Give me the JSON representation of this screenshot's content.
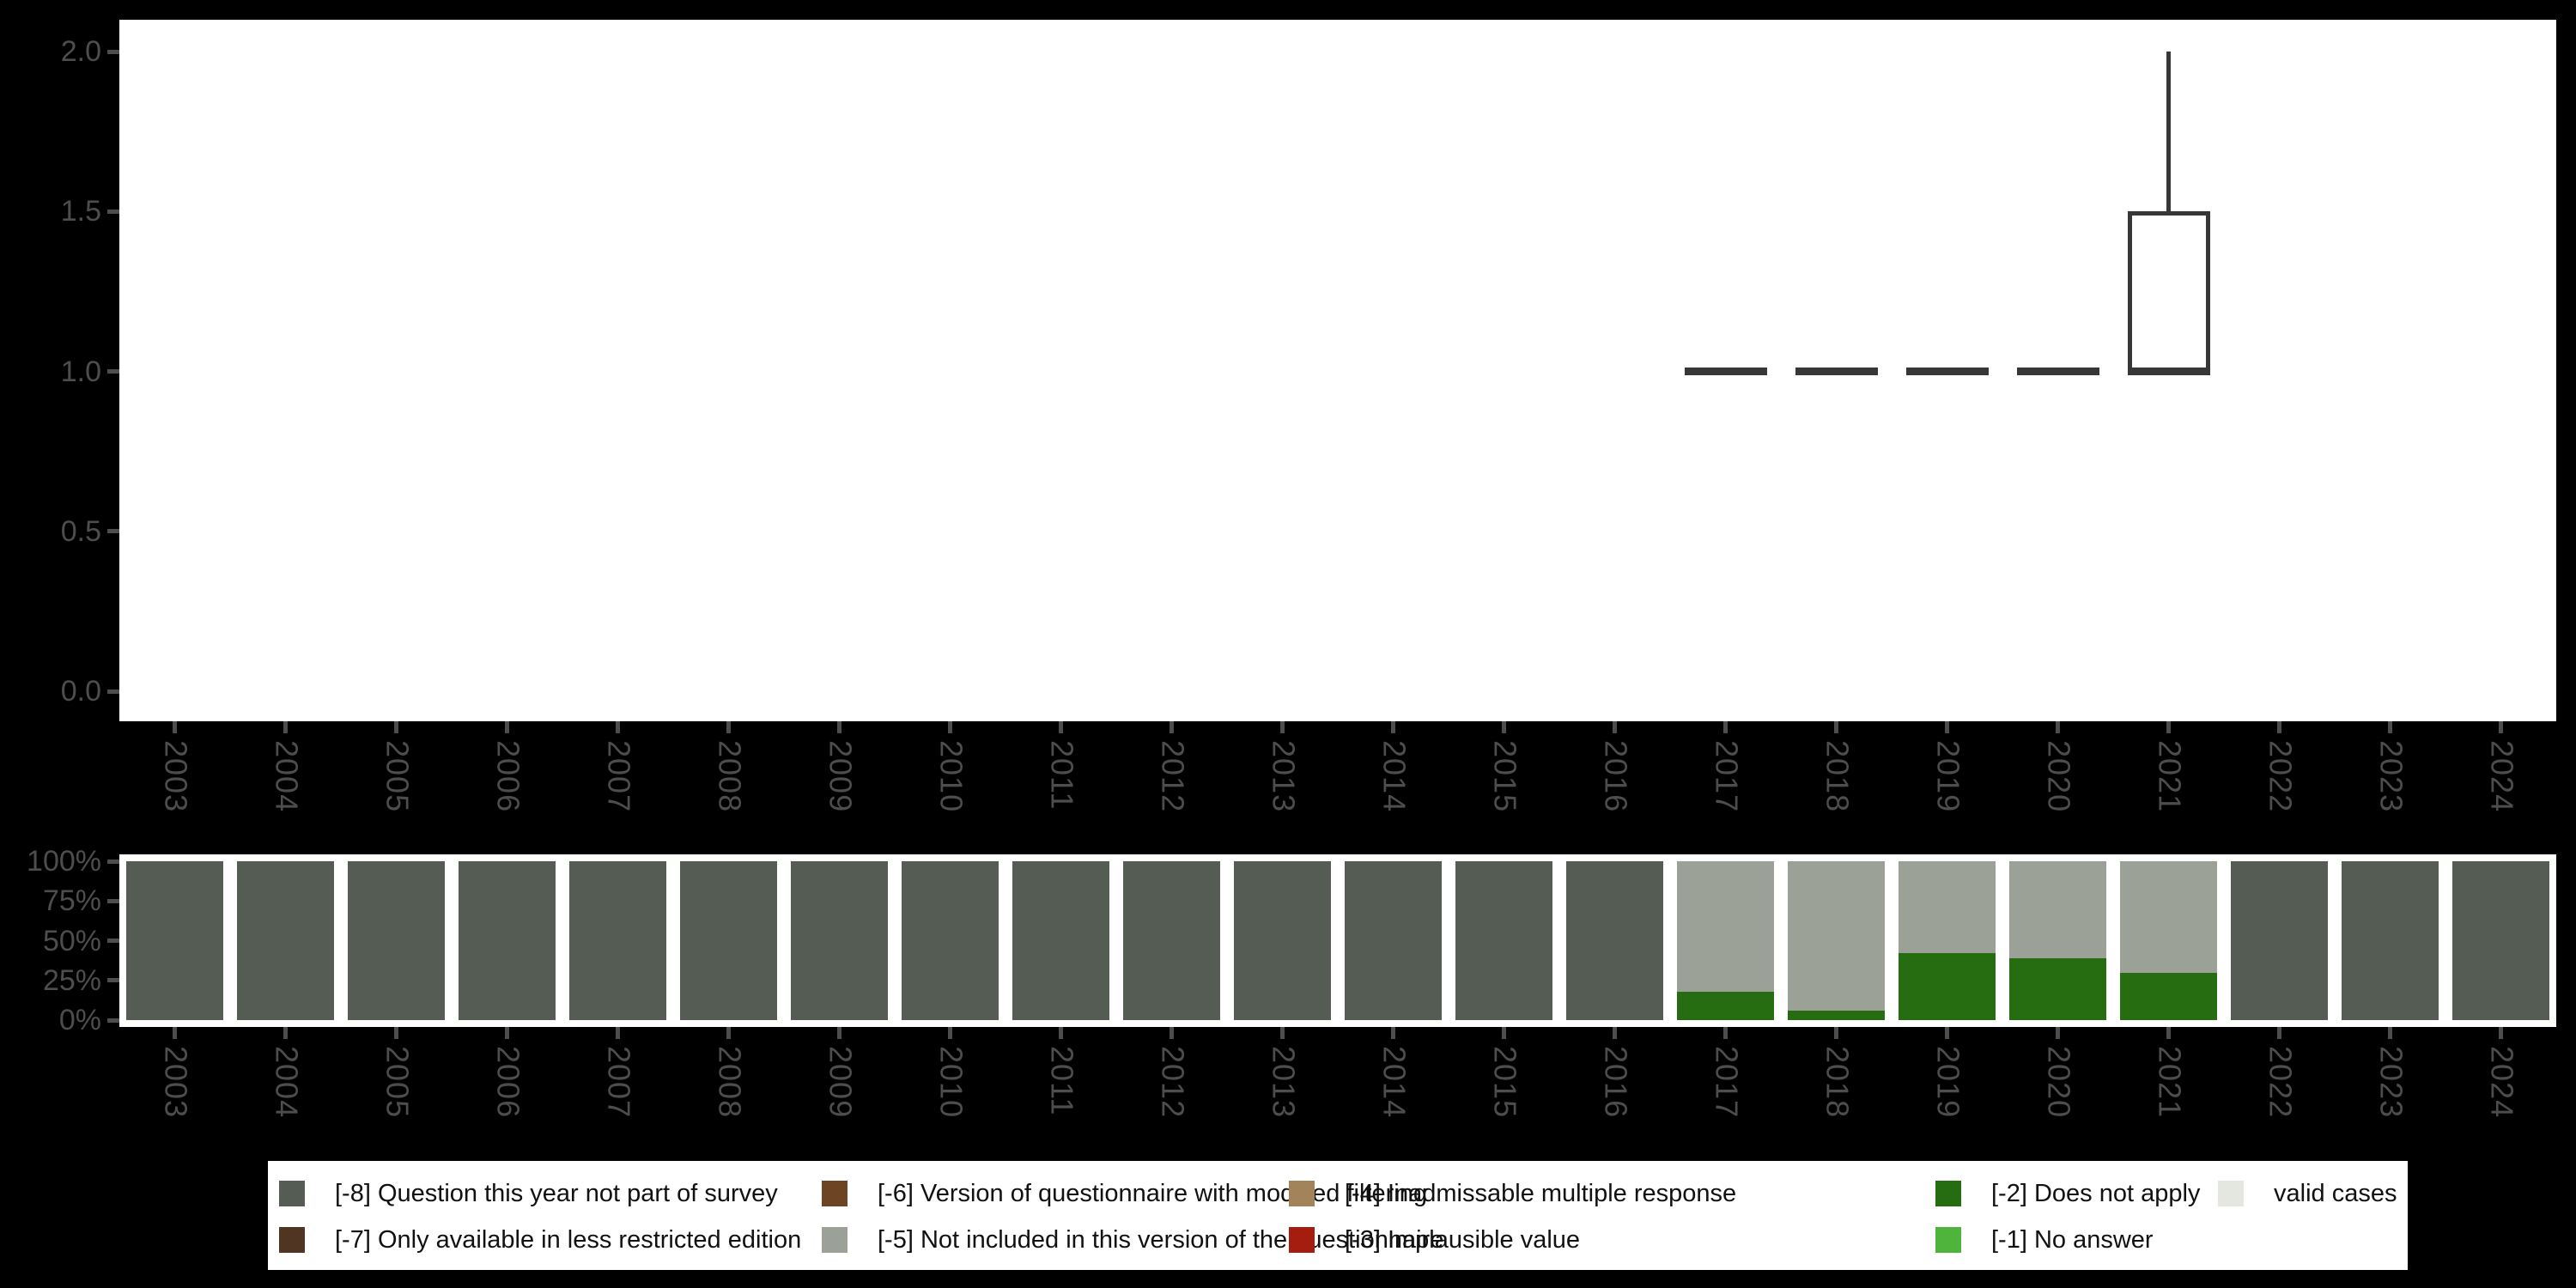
{
  "colors": {
    "background": "#000000",
    "plot_bg": "#ffffff",
    "axis_text": "#4d4d4d",
    "box_stroke": "#373737",
    "-8": "#555c54",
    "-7": "#503522",
    "-6": "#6d4524",
    "-5": "#9ca197",
    "-4": "#a3845a",
    "-3": "#a41d0e",
    "-2": "#266c10",
    "-1": "#4eb43c",
    "valid": "#e3e7df"
  },
  "chart_data": [
    {
      "type": "boxplot",
      "panel": "top",
      "categories": [
        "2003",
        "2004",
        "2005",
        "2006",
        "2007",
        "2008",
        "2009",
        "2010",
        "2011",
        "2012",
        "2013",
        "2014",
        "2015",
        "2016",
        "2017",
        "2018",
        "2019",
        "2020",
        "2021",
        "2022",
        "2023",
        "2024"
      ],
      "ylim": [
        0.0,
        2.0
      ],
      "y_tick_labels": [
        "2.0",
        "1.5",
        "1.0",
        "0.5",
        "0.0"
      ],
      "y_tick_values": [
        2.0,
        1.5,
        1.0,
        0.5,
        0.0
      ],
      "grid": false,
      "boxes": [
        {
          "year": "2017",
          "min": 1.0,
          "q1": 1.0,
          "median": 1.0,
          "q3": 1.0,
          "max": 1.0
        },
        {
          "year": "2018",
          "min": 1.0,
          "q1": 1.0,
          "median": 1.0,
          "q3": 1.0,
          "max": 1.0
        },
        {
          "year": "2019",
          "min": 1.0,
          "q1": 1.0,
          "median": 1.0,
          "q3": 1.0,
          "max": 1.0
        },
        {
          "year": "2020",
          "min": 1.0,
          "q1": 1.0,
          "median": 1.0,
          "q3": 1.0,
          "max": 1.0
        },
        {
          "year": "2021",
          "min": 1.0,
          "q1": 1.0,
          "median": 1.0,
          "q3": 1.5,
          "max": 2.0
        }
      ]
    },
    {
      "type": "bar",
      "panel": "bottom",
      "stacked": true,
      "unit": "percent",
      "categories": [
        "2003",
        "2004",
        "2005",
        "2006",
        "2007",
        "2008",
        "2009",
        "2010",
        "2011",
        "2012",
        "2013",
        "2014",
        "2015",
        "2016",
        "2017",
        "2018",
        "2019",
        "2020",
        "2021",
        "2022",
        "2023",
        "2024"
      ],
      "y_tick_labels": [
        "100%",
        "75%",
        "50%",
        "25%",
        "0%"
      ],
      "y_tick_values": [
        100,
        75,
        50,
        25,
        0
      ],
      "bars": [
        {
          "year": "2003",
          "stack": [
            {
              "key": "-8",
              "pct": 100
            }
          ]
        },
        {
          "year": "2004",
          "stack": [
            {
              "key": "-8",
              "pct": 100
            }
          ]
        },
        {
          "year": "2005",
          "stack": [
            {
              "key": "-8",
              "pct": 100
            }
          ]
        },
        {
          "year": "2006",
          "stack": [
            {
              "key": "-8",
              "pct": 100
            }
          ]
        },
        {
          "year": "2007",
          "stack": [
            {
              "key": "-8",
              "pct": 100
            }
          ]
        },
        {
          "year": "2008",
          "stack": [
            {
              "key": "-8",
              "pct": 100
            }
          ]
        },
        {
          "year": "2009",
          "stack": [
            {
              "key": "-8",
              "pct": 100
            }
          ]
        },
        {
          "year": "2010",
          "stack": [
            {
              "key": "-8",
              "pct": 100
            }
          ]
        },
        {
          "year": "2011",
          "stack": [
            {
              "key": "-8",
              "pct": 100
            }
          ]
        },
        {
          "year": "2012",
          "stack": [
            {
              "key": "-8",
              "pct": 100
            }
          ]
        },
        {
          "year": "2013",
          "stack": [
            {
              "key": "-8",
              "pct": 100
            }
          ]
        },
        {
          "year": "2014",
          "stack": [
            {
              "key": "-8",
              "pct": 100
            }
          ]
        },
        {
          "year": "2015",
          "stack": [
            {
              "key": "-8",
              "pct": 100
            }
          ]
        },
        {
          "year": "2016",
          "stack": [
            {
              "key": "-8",
              "pct": 100
            }
          ]
        },
        {
          "year": "2017",
          "stack": [
            {
              "key": "-2",
              "pct": 18
            },
            {
              "key": "-5",
              "pct": 82
            }
          ]
        },
        {
          "year": "2018",
          "stack": [
            {
              "key": "-2",
              "pct": 6
            },
            {
              "key": "-5",
              "pct": 94
            }
          ]
        },
        {
          "year": "2019",
          "stack": [
            {
              "key": "-2",
              "pct": 42
            },
            {
              "key": "-5",
              "pct": 58
            }
          ]
        },
        {
          "year": "2020",
          "stack": [
            {
              "key": "-2",
              "pct": 39
            },
            {
              "key": "-5",
              "pct": 61
            }
          ]
        },
        {
          "year": "2021",
          "stack": [
            {
              "key": "-2",
              "pct": 30
            },
            {
              "key": "-5",
              "pct": 70
            }
          ]
        },
        {
          "year": "2022",
          "stack": [
            {
              "key": "-8",
              "pct": 100
            }
          ]
        },
        {
          "year": "2023",
          "stack": [
            {
              "key": "-8",
              "pct": 100
            }
          ]
        },
        {
          "year": "2024",
          "stack": [
            {
              "key": "-8",
              "pct": 100
            }
          ]
        }
      ]
    }
  ],
  "legend": {
    "items": [
      {
        "key": "-8",
        "label": "[-8] Question this year not part of survey",
        "col": 0,
        "row": 0
      },
      {
        "key": "-7",
        "label": "[-7] Only available in less restricted edition",
        "col": 0,
        "row": 1
      },
      {
        "key": "-6",
        "label": "[-6] Version of questionnaire with modified filtering",
        "col": 1,
        "row": 0
      },
      {
        "key": "-5",
        "label": "[-5] Not included in this version of the questionnaire",
        "col": 1,
        "row": 1
      },
      {
        "key": "-4",
        "label": "[-4] Inadmissable multiple response",
        "col": 2,
        "row": 0
      },
      {
        "key": "-3",
        "label": "[-3] Implausible value",
        "col": 2,
        "row": 1
      },
      {
        "key": "-2",
        "label": "[-2] Does not apply",
        "col": 3,
        "row": 0
      },
      {
        "key": "-1",
        "label": "[-1] No answer",
        "col": 3,
        "row": 1
      },
      {
        "key": "valid",
        "label": "valid cases",
        "col": 4,
        "row": 0
      }
    ]
  }
}
